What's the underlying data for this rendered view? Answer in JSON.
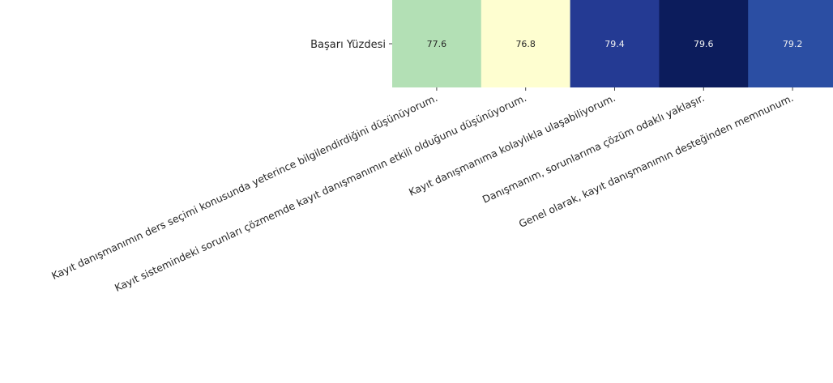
{
  "chart_data": {
    "type": "heatmap",
    "title": "",
    "xlabel": "",
    "ylabel": "",
    "rows": [
      "Başarı Yüzdesi"
    ],
    "columns": [
      "Kayıt danışmanımın ders seçimi konusunda yeterince bilgilendirdiğini düşünüyorum.",
      "Kayıt sistemindeki sorunları çözmemde kayıt danışmanımın etkili olduğunu düşünüyorum.",
      "Kayıt danışmanıma kolaylıkla ulaşabiliyorum.",
      "Danışmanım, sorunlarıma çözüm odaklı yaklaşır.",
      "Genel olarak, kayıt danışmanımın desteğinden memnunum."
    ],
    "values": [
      [
        77.6,
        76.8,
        79.4,
        79.6,
        79.2
      ]
    ],
    "value_labels": [
      "77.6",
      "76.8",
      "79.4",
      "79.6",
      "79.2"
    ],
    "colormap": "YlGnBu",
    "cell_colors": [
      "#b3e0b5",
      "#fefed0",
      "#243a93",
      "#0c1c5c",
      "#2b4ea3"
    ],
    "label_colors": [
      "#262626",
      "#262626",
      "#f2f2f2",
      "#f2f2f2",
      "#f2f2f2"
    ],
    "colorbar": false,
    "grid": false,
    "legend": "none"
  }
}
